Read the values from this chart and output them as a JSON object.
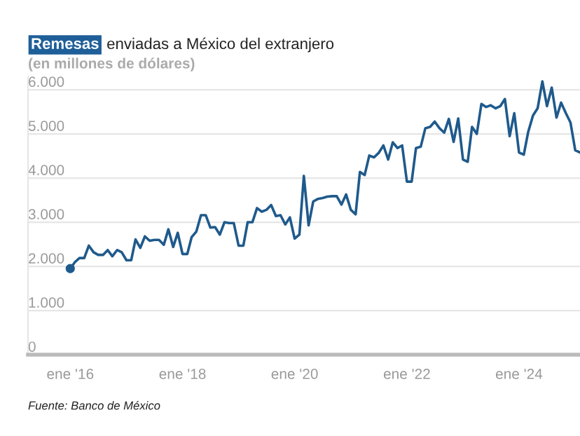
{
  "chart_data": {
    "type": "line",
    "title": "Remesas enviadas a México del extranjero",
    "subtitle": "(en millones de dólares)",
    "annotations": [
      "Fuente: Banco de México"
    ],
    "x": [
      "2016-01",
      "2016-02",
      "2016-03",
      "2016-04",
      "2016-05",
      "2016-06",
      "2016-07",
      "2016-08",
      "2016-09",
      "2016-10",
      "2016-11",
      "2016-12",
      "2017-01",
      "2017-02",
      "2017-03",
      "2017-04",
      "2017-05",
      "2017-06",
      "2017-07",
      "2017-08",
      "2017-09",
      "2017-10",
      "2017-11",
      "2017-12",
      "2018-01",
      "2018-02",
      "2018-03",
      "2018-04",
      "2018-05",
      "2018-06",
      "2018-07",
      "2018-08",
      "2018-09",
      "2018-10",
      "2018-11",
      "2018-12",
      "2019-01",
      "2019-02",
      "2019-03",
      "2019-04",
      "2019-05",
      "2019-06",
      "2019-07",
      "2019-08",
      "2019-09",
      "2019-10",
      "2019-11",
      "2019-12",
      "2020-01",
      "2020-02",
      "2020-03",
      "2020-04",
      "2020-05",
      "2020-06",
      "2020-07",
      "2020-08",
      "2020-09",
      "2020-10",
      "2020-11",
      "2020-12",
      "2021-01",
      "2021-02",
      "2021-03",
      "2021-04",
      "2021-05",
      "2021-06",
      "2021-07",
      "2021-08",
      "2021-09",
      "2021-10",
      "2021-11",
      "2021-12",
      "2022-01",
      "2022-02",
      "2022-03",
      "2022-04",
      "2022-05",
      "2022-06",
      "2022-07",
      "2022-08",
      "2022-09",
      "2022-10",
      "2022-11",
      "2022-12",
      "2023-01",
      "2023-02",
      "2023-03",
      "2023-04",
      "2023-05",
      "2023-06",
      "2023-07",
      "2023-08",
      "2023-09",
      "2023-10",
      "2023-11",
      "2023-12",
      "2024-01",
      "2024-02",
      "2024-03",
      "2024-04",
      "2024-05",
      "2024-06",
      "2024-07",
      "2024-08",
      "2024-09",
      "2024-10",
      "2024-11",
      "2024-12",
      "2025-01",
      "2025-02"
    ],
    "series": [
      {
        "color": "#1f5a8c",
        "values": [
          1950,
          2100,
          2190,
          2190,
          2470,
          2320,
          2260,
          2260,
          2370,
          2230,
          2370,
          2320,
          2140,
          2140,
          2610,
          2420,
          2680,
          2580,
          2600,
          2600,
          2490,
          2840,
          2440,
          2760,
          2280,
          2280,
          2660,
          2790,
          3160,
          3160,
          2880,
          2890,
          2720,
          3000,
          2980,
          2980,
          2470,
          2470,
          3000,
          3000,
          3320,
          3240,
          3280,
          3390,
          3140,
          3160,
          2950,
          3110,
          2630,
          2720,
          4050,
          2930,
          3470,
          3530,
          3550,
          3580,
          3590,
          3590,
          3400,
          3630,
          3280,
          3180,
          4140,
          4070,
          4510,
          4470,
          4570,
          4740,
          4420,
          4810,
          4680,
          4740,
          3920,
          3920,
          4680,
          4710,
          5130,
          5160,
          5280,
          5130,
          5030,
          5340,
          4820,
          5350,
          4420,
          4370,
          5160,
          5000,
          5680,
          5610,
          5650,
          5580,
          5630,
          5790,
          4950,
          5470,
          4580,
          4530,
          5050,
          5420,
          5580,
          6190,
          5630,
          6050,
          5370,
          5710,
          5470,
          5260,
          4630,
          4580
        ]
      },
      {
        "type": "scatter",
        "color": "#1f5a8c",
        "x": [
          "2016-01"
        ],
        "values": [
          1950
        ]
      }
    ],
    "xlim": [
      "2015-04",
      "2025-02"
    ],
    "xticks": [
      {
        "value": "2016-01",
        "label": "ene '16"
      },
      {
        "value": "2018-01",
        "label": "ene '18"
      },
      {
        "value": "2020-01",
        "label": "ene '20"
      },
      {
        "value": "2022-01",
        "label": "ene '22"
      },
      {
        "value": "2024-01",
        "label": "ene '24"
      }
    ],
    "ylim": [
      0,
      6300
    ],
    "yticks": [
      {
        "value": 0,
        "label": "0"
      },
      {
        "value": 1000,
        "label": "1.000"
      },
      {
        "value": 2000,
        "label": "2.000"
      },
      {
        "value": 3000,
        "label": "3.000"
      },
      {
        "value": 4000,
        "label": "4.000"
      },
      {
        "value": 5000,
        "label": "5.000"
      },
      {
        "value": 6000,
        "label": "6.000"
      }
    ],
    "grid": "y"
  }
}
